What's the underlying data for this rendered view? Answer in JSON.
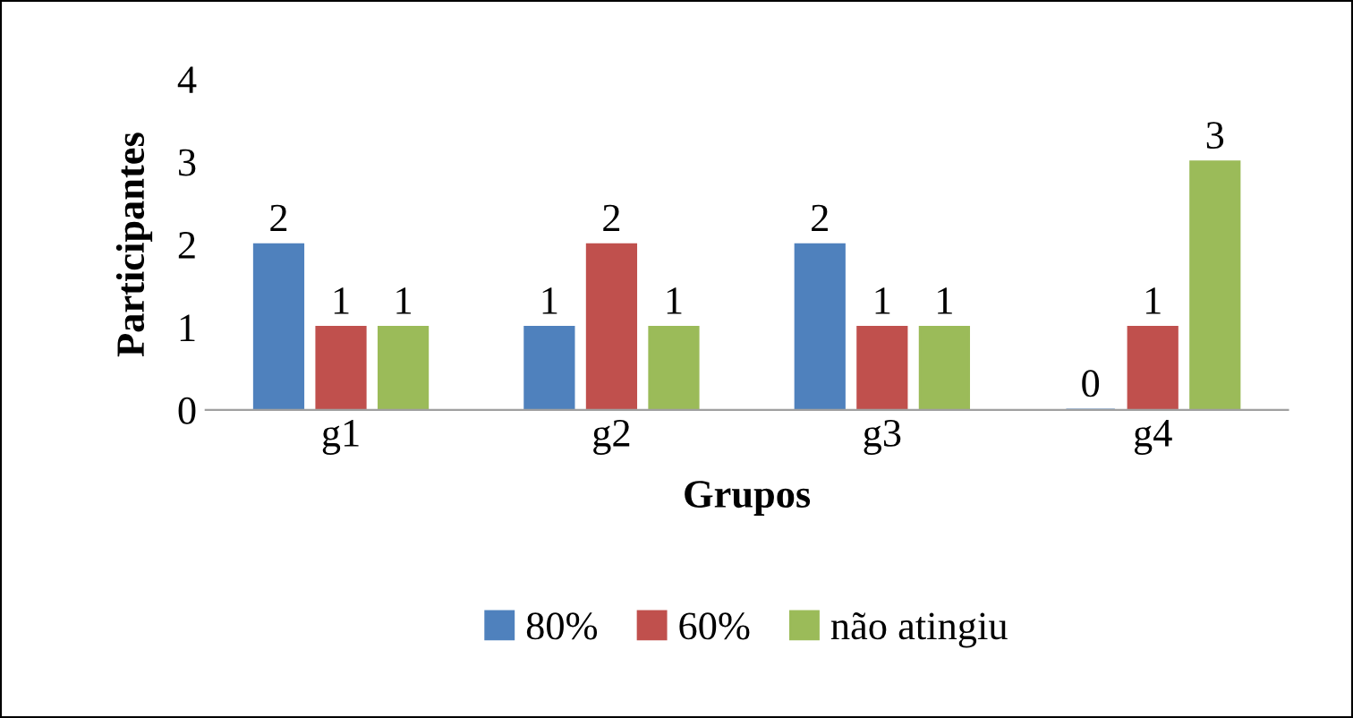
{
  "chart_data": {
    "type": "bar",
    "xlabel": "Grupos",
    "ylabel": "Participantes",
    "categories": [
      "g1",
      "g2",
      "g3",
      "g4"
    ],
    "series": [
      {
        "name": "80%",
        "color": "#4f81bd",
        "values": [
          2,
          1,
          2,
          0
        ]
      },
      {
        "name": "60%",
        "color": "#c0504d",
        "values": [
          1,
          2,
          1,
          1
        ]
      },
      {
        "name": "não atingiu",
        "color": "#9bbb59",
        "values": [
          1,
          1,
          1,
          3
        ]
      }
    ],
    "ylim": [
      0,
      4
    ],
    "yticks": [
      0,
      1,
      2,
      3,
      4
    ],
    "grid": false,
    "data_labels": true,
    "legend": "bottom"
  }
}
